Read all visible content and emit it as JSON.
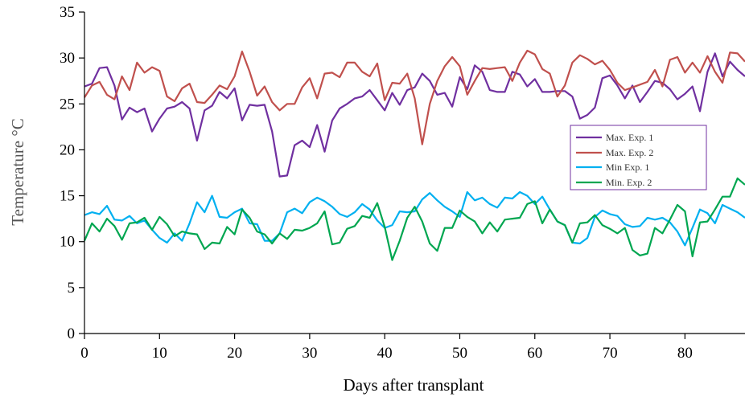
{
  "chart_data": {
    "type": "line",
    "xlabel": "Days after transplant",
    "ylabel": "Temperature °C",
    "xlim": [
      0,
      88
    ],
    "ylim": [
      0,
      35
    ],
    "xticks": [
      0,
      10,
      20,
      30,
      40,
      50,
      60,
      70,
      80
    ],
    "yticks": [
      0,
      5,
      10,
      15,
      20,
      25,
      30,
      35
    ],
    "legend_position": "right",
    "x": [
      0,
      1,
      2,
      3,
      4,
      5,
      6,
      7,
      8,
      9,
      10,
      11,
      12,
      13,
      14,
      15,
      16,
      17,
      18,
      19,
      20,
      21,
      22,
      23,
      24,
      25,
      26,
      27,
      28,
      29,
      30,
      31,
      32,
      33,
      34,
      35,
      36,
      37,
      38,
      39,
      40,
      41,
      42,
      43,
      44,
      45,
      46,
      47,
      48,
      49,
      50,
      51,
      52,
      53,
      54,
      55,
      56,
      57,
      58,
      59,
      60,
      61,
      62,
      63,
      64,
      65,
      66,
      67,
      68,
      69,
      70,
      71,
      72,
      73,
      74,
      75,
      76,
      77,
      78,
      79,
      80,
      81,
      82,
      83,
      84,
      85,
      86,
      87,
      88
    ],
    "series": [
      {
        "name": "Max. Exp. 1",
        "color": "#7030a0",
        "values": [
          26.9,
          27.2,
          28.9,
          29.0,
          27.0,
          23.3,
          24.6,
          24.1,
          24.5,
          22.0,
          23.4,
          24.5,
          24.7,
          25.2,
          24.5,
          21.0,
          24.3,
          24.8,
          26.3,
          25.6,
          26.7,
          23.2,
          24.9,
          24.8,
          24.9,
          22.0,
          17.1,
          17.2,
          20.5,
          21.0,
          20.3,
          22.7,
          19.8,
          23.2,
          24.5,
          25.0,
          25.6,
          25.8,
          26.5,
          25.4,
          24.3,
          26.2,
          24.9,
          26.5,
          26.8,
          28.3,
          27.5,
          26.0,
          26.2,
          24.7,
          27.9,
          26.6,
          29.2,
          28.5,
          26.5,
          26.3,
          26.3,
          28.5,
          28.2,
          26.9,
          27.7,
          26.3,
          26.3,
          26.4,
          26.4,
          25.8,
          23.4,
          23.8,
          24.6,
          27.8,
          28.1,
          27.0,
          25.6,
          27.0,
          25.2,
          26.3,
          27.5,
          27.3,
          26.6,
          25.5,
          26.1,
          26.9,
          24.2,
          28.5,
          30.5,
          28.0,
          29.6,
          28.7,
          28.0
        ]
      },
      {
        "name": "Max. Exp. 2",
        "color": "#c0504d",
        "values": [
          25.7,
          27.0,
          27.4,
          26.0,
          25.5,
          28.0,
          26.5,
          29.5,
          28.4,
          29.0,
          28.6,
          25.8,
          25.3,
          26.7,
          27.2,
          25.2,
          25.1,
          26.0,
          27.0,
          26.6,
          28.0,
          30.7,
          28.5,
          25.9,
          26.9,
          25.2,
          24.3,
          25.0,
          25.0,
          26.8,
          27.8,
          25.6,
          28.3,
          28.4,
          27.9,
          29.5,
          29.5,
          28.5,
          28.0,
          29.4,
          25.4,
          27.3,
          27.2,
          28.3,
          25.6,
          20.6,
          25.0,
          27.5,
          29.1,
          30.1,
          29.1,
          26.0,
          27.5,
          28.9,
          28.8,
          28.9,
          29.0,
          27.5,
          29.5,
          30.8,
          30.4,
          28.8,
          28.3,
          25.8,
          27.0,
          29.5,
          30.3,
          29.9,
          29.3,
          29.7,
          28.7,
          27.3,
          26.5,
          26.8,
          27.1,
          27.4,
          28.7,
          26.9,
          29.8,
          30.1,
          28.4,
          29.5,
          28.4,
          30.2,
          28.5,
          27.3,
          30.6,
          30.5,
          29.6
        ]
      },
      {
        "name": "Min Exp. 1",
        "color": "#00b0f0",
        "values": [
          12.9,
          13.2,
          13.0,
          13.9,
          12.4,
          12.3,
          12.8,
          12.0,
          12.3,
          11.3,
          10.4,
          9.9,
          10.9,
          10.1,
          12.0,
          14.3,
          13.2,
          15.0,
          12.7,
          12.6,
          13.2,
          13.6,
          12.0,
          11.9,
          10.1,
          10.1,
          10.9,
          13.2,
          13.6,
          13.1,
          14.3,
          14.8,
          14.4,
          13.8,
          13.0,
          12.7,
          13.2,
          14.1,
          13.5,
          12.3,
          11.5,
          11.8,
          13.3,
          13.2,
          13.3,
          14.6,
          15.3,
          14.5,
          13.8,
          13.3,
          12.7,
          15.4,
          14.5,
          14.8,
          14.1,
          13.7,
          14.8,
          14.7,
          15.4,
          15.0,
          14.1,
          14.9,
          13.5,
          12.2,
          11.8,
          9.9,
          9.8,
          10.4,
          12.7,
          13.4,
          13.0,
          12.8,
          11.9,
          11.6,
          11.7,
          12.6,
          12.4,
          12.6,
          12.1,
          11.1,
          9.6,
          11.5,
          13.5,
          13.1,
          12.0,
          14.0,
          13.6,
          13.2,
          12.6
        ]
      },
      {
        "name": "Min. Exp. 2",
        "color": "#00a650",
        "values": [
          10.1,
          12.0,
          11.1,
          12.5,
          11.7,
          10.2,
          12.0,
          12.1,
          12.6,
          11.3,
          12.7,
          11.9,
          10.6,
          11.1,
          10.9,
          10.8,
          9.2,
          9.9,
          9.8,
          11.6,
          10.8,
          13.5,
          12.6,
          11.1,
          10.8,
          9.8,
          10.9,
          10.3,
          11.3,
          11.2,
          11.5,
          12.0,
          13.3,
          9.7,
          9.9,
          11.4,
          11.7,
          12.8,
          12.6,
          14.2,
          11.6,
          8.0,
          10.1,
          12.6,
          13.8,
          12.2,
          9.8,
          9.0,
          11.5,
          11.5,
          13.4,
          12.7,
          12.2,
          10.9,
          12.1,
          11.1,
          12.4,
          12.5,
          12.6,
          14.1,
          14.4,
          12.0,
          13.5,
          12.2,
          11.8,
          9.9,
          12.0,
          12.1,
          12.9,
          11.8,
          11.4,
          10.9,
          11.5,
          9.1,
          8.5,
          8.7,
          11.5,
          10.9,
          12.4,
          14.0,
          13.3,
          8.4,
          12.1,
          12.2,
          13.5,
          14.9,
          14.9,
          16.9,
          16.2
        ]
      }
    ]
  }
}
